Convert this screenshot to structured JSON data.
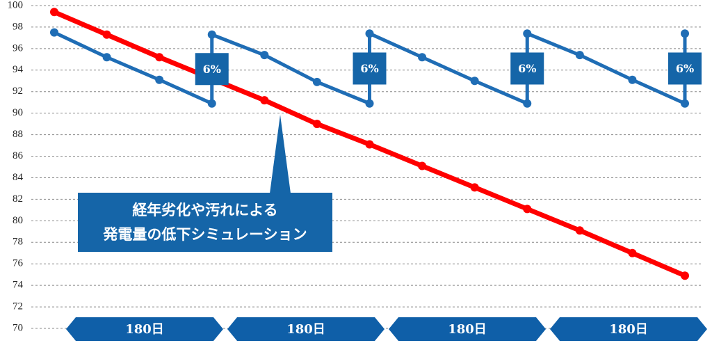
{
  "chart_data": {
    "type": "line",
    "series": [
      {
        "name": null,
        "color": "#ff0000",
        "x": [
          0,
          60,
          120,
          180,
          240,
          300,
          360,
          420,
          480,
          540,
          600,
          660,
          720
        ],
        "values": [
          99.4,
          97.3,
          95.2,
          93.2,
          91.2,
          89.0,
          87.1,
          85.1,
          83.1,
          81.1,
          79.1,
          77.0,
          74.9
        ]
      },
      {
        "name": null,
        "color": "#1f6db5",
        "x": [
          0,
          60,
          120,
          180,
          180,
          240,
          300,
          360,
          360,
          420,
          480,
          540,
          540,
          600,
          660,
          720,
          720
        ],
        "values": [
          97.5,
          95.2,
          93.1,
          90.9,
          97.3,
          95.4,
          92.9,
          90.9,
          97.4,
          95.2,
          93.0,
          90.9,
          97.4,
          95.4,
          93.1,
          90.9,
          97.4
        ]
      }
    ],
    "xlim": [
      0,
      720
    ],
    "ylim": [
      70,
      100
    ],
    "yticks": [
      70,
      72,
      74,
      76,
      78,
      80,
      82,
      84,
      86,
      88,
      90,
      92,
      94,
      96,
      98,
      100
    ],
    "grid": true,
    "jump_labels": [
      "6%",
      "6%",
      "6%",
      "6%"
    ],
    "period_labels": [
      "180日",
      "180日",
      "180日",
      "180日"
    ],
    "annotation": [
      "経年劣化や汚れによる",
      "発電量の低下シミュレーション"
    ]
  }
}
